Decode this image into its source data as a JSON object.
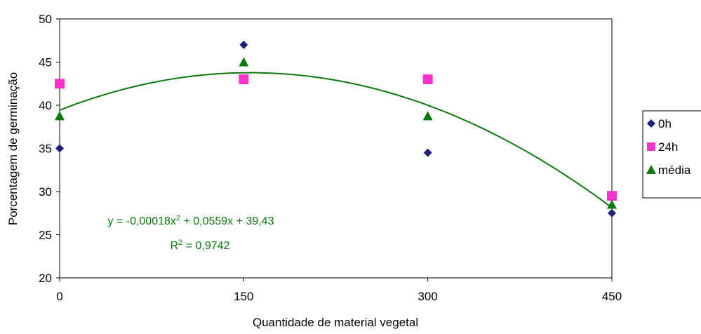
{
  "chart_data": {
    "type": "scatter",
    "title": "",
    "xlabel": "Quantidade de material vegetal",
    "ylabel": "Porcentagem de germinação",
    "xlim": [
      0,
      450
    ],
    "ylim": [
      20,
      50
    ],
    "xticks": [
      0,
      150,
      300,
      450
    ],
    "yticks": [
      20,
      25,
      30,
      35,
      40,
      45,
      50
    ],
    "grid": false,
    "legend_position": "right",
    "series": [
      {
        "name": "0h",
        "marker": "diamond",
        "color": "#1f1f7a",
        "x": [
          0,
          150,
          300,
          450
        ],
        "y": [
          35,
          47,
          34.5,
          27.5
        ]
      },
      {
        "name": "24h",
        "marker": "square",
        "color": "#ff33cc",
        "x": [
          0,
          150,
          300,
          450
        ],
        "y": [
          42.5,
          43,
          43,
          29.5
        ]
      },
      {
        "name": "média",
        "marker": "triangle",
        "color": "#0a7a0a",
        "x": [
          0,
          150,
          300,
          450
        ],
        "y": [
          38.75,
          45,
          38.75,
          28.5
        ]
      }
    ],
    "trendline": {
      "color": "#0a7a0a",
      "coefficients": {
        "a": -0.00018,
        "b": 0.0559,
        "c": 39.43
      },
      "equation_text": "y = -0,00018x² + 0,0559x + 39,43",
      "r2_text": "R² = 0,9742"
    }
  }
}
